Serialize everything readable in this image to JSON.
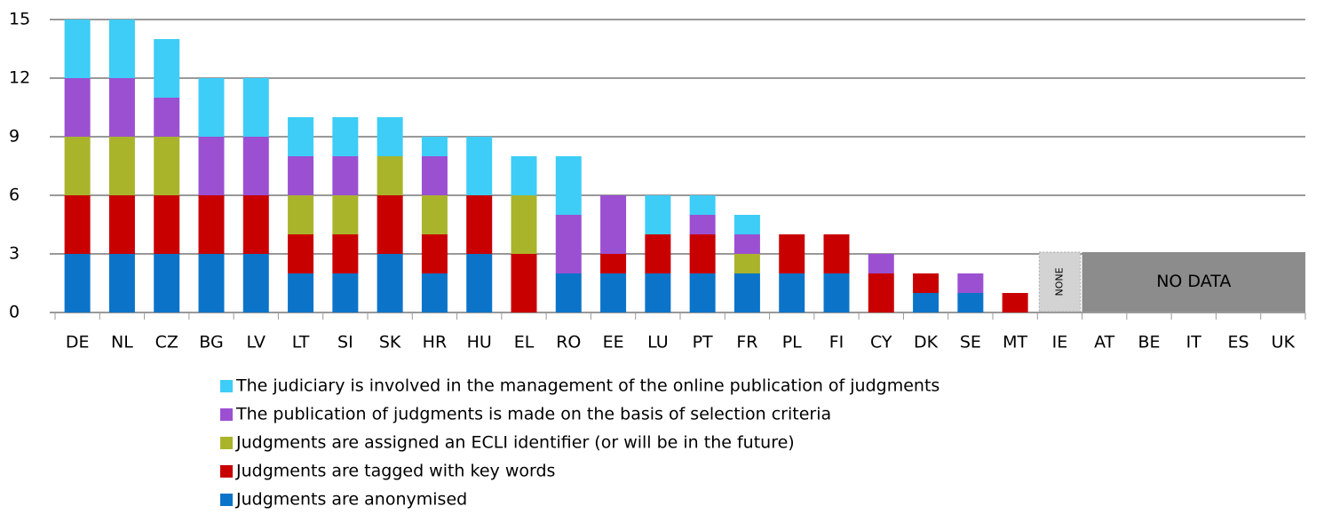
{
  "chart_data": {
    "type": "stacked_bar",
    "categories": [
      "DE",
      "NL",
      "CZ",
      "BG",
      "LV",
      "LT",
      "SI",
      "SK",
      "HR",
      "HU",
      "EL",
      "RO",
      "EE",
      "LU",
      "PT",
      "FR",
      "PL",
      "FI",
      "CY",
      "DK",
      "SE",
      "MT",
      "IE",
      "AT",
      "BE",
      "IT",
      "ES",
      "UK"
    ],
    "series": [
      {
        "name": "Judgments are anonymised",
        "color": "#0b74c9",
        "values": [
          3,
          3,
          3,
          3,
          3,
          2,
          2,
          3,
          2,
          3,
          0,
          2,
          2,
          2,
          2,
          2,
          2,
          2,
          0,
          1,
          1,
          0,
          null,
          null,
          null,
          null,
          null,
          null
        ]
      },
      {
        "name": "Judgments are tagged with key words",
        "color": "#c90000",
        "values": [
          3,
          3,
          3,
          3,
          3,
          2,
          2,
          3,
          2,
          3,
          3,
          0,
          1,
          2,
          2,
          0,
          2,
          2,
          2,
          1,
          0,
          1,
          null,
          null,
          null,
          null,
          null,
          null
        ]
      },
      {
        "name": "Judgments are assigned an ECLI identifier (or will be in the future)",
        "color": "#a9b42b",
        "values": [
          3,
          3,
          3,
          0,
          0,
          2,
          2,
          2,
          2,
          0,
          3,
          0,
          0,
          0,
          0,
          1,
          0,
          0,
          0,
          0,
          0,
          0,
          null,
          null,
          null,
          null,
          null,
          null
        ]
      },
      {
        "name": "The publication of judgments is made on the basis of selection criteria",
        "color": "#9b50d2",
        "values": [
          3,
          3,
          2,
          3,
          3,
          2,
          2,
          0,
          2,
          0,
          0,
          3,
          3,
          0,
          1,
          1,
          0,
          0,
          1,
          0,
          1,
          0,
          null,
          null,
          null,
          null,
          null,
          null
        ]
      },
      {
        "name": "The judiciary is involved in the management of the online publication of judgments",
        "color": "#3dcdf7",
        "values": [
          3,
          3,
          3,
          3,
          3,
          2,
          2,
          2,
          1,
          3,
          2,
          3,
          0,
          2,
          1,
          1,
          0,
          0,
          0,
          0,
          0,
          0,
          null,
          null,
          null,
          null,
          null,
          null
        ]
      }
    ],
    "annotations": [
      "NONE",
      "NO DATA"
    ],
    "ylim": [
      0,
      15
    ],
    "yticks": [
      0,
      3,
      6,
      9,
      12,
      15
    ],
    "grid": true
  }
}
